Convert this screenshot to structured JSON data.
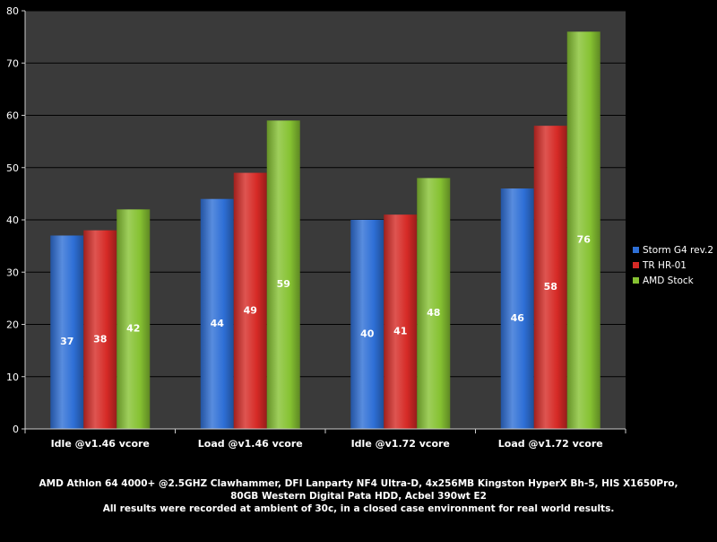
{
  "chart_data": {
    "type": "bar",
    "categories": [
      "Idle @v1.46 vcore",
      "Load @v1.46 vcore",
      "Idle @v1.72 vcore",
      "Load @v1.72 vcore"
    ],
    "series": [
      {
        "name": "Storm G4 rev.2",
        "color": "#2e6fd6",
        "values": [
          37,
          44,
          40,
          46
        ]
      },
      {
        "name": "TR HR-01",
        "color": "#d62a26",
        "values": [
          38,
          49,
          41,
          58
        ]
      },
      {
        "name": "AMD Stock",
        "color": "#86c232",
        "values": [
          42,
          59,
          48,
          76
        ]
      }
    ],
    "ylim": [
      0,
      80
    ],
    "yticks": [
      0,
      10,
      20,
      30,
      40,
      50,
      60,
      70,
      80
    ],
    "grid": true,
    "legend": "right",
    "title": "",
    "xlabel": "",
    "ylabel": ""
  },
  "caption": {
    "line1": "AMD Athlon 64 4000+ @2.5GHZ Clawhammer, DFI Lanparty NF4 Ultra-D, 4x256MB Kingston HyperX Bh-5, HIS X1650Pro,",
    "line2": "80GB Western Digital Pata HDD, Acbel 390wt E2",
    "line3": "All results were recorded at ambient of 30c, in a closed case environment for real world results."
  }
}
